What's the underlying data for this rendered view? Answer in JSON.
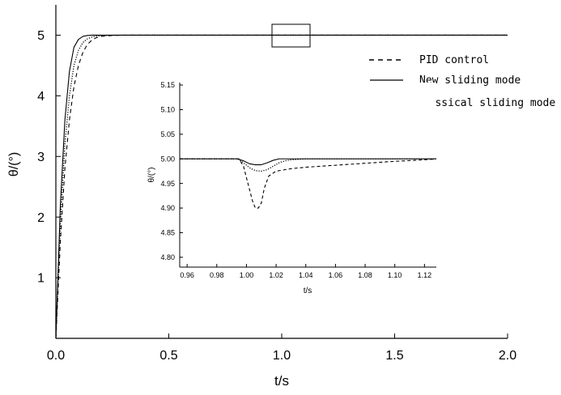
{
  "chart_data": [
    {
      "type": "line",
      "xlabel": "t/s",
      "ylabel": "θ/(°)",
      "xlim": [
        0.0,
        2.0
      ],
      "ylim": [
        0.0,
        5.5
      ],
      "xticks": [
        "0.0",
        "0.5",
        "1.0",
        "1.5",
        "2.0"
      ],
      "yticks": [
        "1",
        "2",
        "3",
        "4",
        "5"
      ],
      "legend_position": "right",
      "series": [
        {
          "name": "PID control",
          "style": "dashed",
          "x": [
            0.0,
            0.02,
            0.04,
            0.06,
            0.08,
            0.1,
            0.12,
            0.14,
            0.16,
            0.18,
            0.2,
            0.25,
            0.3,
            2.0
          ],
          "y": [
            0.0,
            1.6,
            2.8,
            3.6,
            4.15,
            4.5,
            4.72,
            4.85,
            4.92,
            4.96,
            4.98,
            4.995,
            5.0,
            5.0
          ]
        },
        {
          "name": "New sliding mode",
          "style": "solid",
          "x": [
            0.0,
            0.02,
            0.04,
            0.06,
            0.08,
            0.1,
            0.12,
            0.14,
            0.16,
            0.2,
            0.3,
            2.0
          ],
          "y": [
            0.0,
            2.2,
            3.6,
            4.4,
            4.8,
            4.93,
            4.98,
            4.995,
            5.0,
            5.0,
            5.0,
            5.0
          ]
        },
        {
          "name": "Classical sliding mode",
          "style": "dotted",
          "x": [
            0.0,
            0.02,
            0.04,
            0.06,
            0.08,
            0.1,
            0.12,
            0.14,
            0.16,
            0.18,
            0.2,
            0.25,
            0.33,
            2.0
          ],
          "y": [
            0.0,
            1.9,
            3.2,
            4.0,
            4.5,
            4.75,
            4.88,
            4.94,
            4.97,
            4.985,
            4.99,
            4.998,
            5.0,
            5.0
          ]
        }
      ]
    },
    {
      "type": "line",
      "role": "inset",
      "xlabel": "t/s",
      "ylabel": "θ/(°)",
      "xlim": [
        0.955,
        1.128
      ],
      "ylim": [
        4.78,
        5.155
      ],
      "xticks": [
        "0.96",
        "0.98",
        "1.00",
        "1.02",
        "1.04",
        "1.06",
        "1.08",
        "1.10",
        "1.12"
      ],
      "yticks": [
        "4.80",
        "4.85",
        "4.90",
        "4.95",
        "5.00",
        "5.05",
        "5.10",
        "5.15"
      ],
      "series": [
        {
          "name": "PID control",
          "style": "dashed",
          "x": [
            0.955,
            0.995,
            0.998,
            1.001,
            1.004,
            1.006,
            1.008,
            1.01,
            1.012,
            1.015,
            1.02,
            1.03,
            1.04,
            1.06,
            1.08,
            1.1,
            1.12,
            1.128
          ],
          "y": [
            5.0,
            5.0,
            4.985,
            4.95,
            4.915,
            4.9,
            4.9,
            4.91,
            4.94,
            4.965,
            4.975,
            4.98,
            4.983,
            4.987,
            4.991,
            4.995,
            4.998,
            5.0
          ]
        },
        {
          "name": "New sliding mode",
          "style": "solid",
          "x": [
            0.955,
            0.994,
            0.998,
            1.002,
            1.006,
            1.01,
            1.014,
            1.018,
            1.022,
            1.03,
            1.128
          ],
          "y": [
            5.0,
            5.0,
            4.996,
            4.99,
            4.988,
            4.988,
            4.992,
            4.997,
            5.0,
            5.0,
            5.0
          ]
        },
        {
          "name": "Classical sliding mode",
          "style": "dotted",
          "x": [
            0.955,
            0.994,
            0.998,
            1.002,
            1.006,
            1.01,
            1.014,
            1.018,
            1.022,
            1.026,
            1.03,
            1.04,
            1.128
          ],
          "y": [
            5.0,
            5.0,
            4.992,
            4.982,
            4.976,
            4.975,
            4.978,
            4.985,
            4.992,
            4.996,
            4.998,
            5.0,
            5.0
          ]
        }
      ]
    }
  ]
}
